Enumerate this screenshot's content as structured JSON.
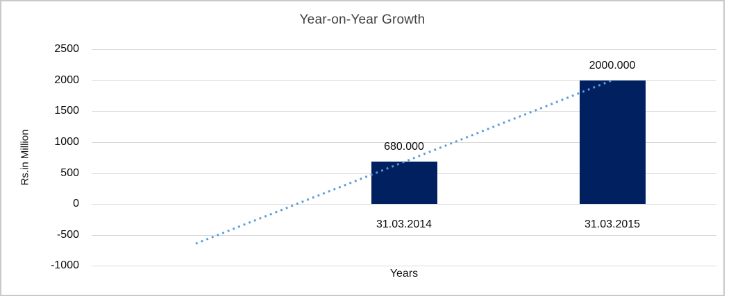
{
  "frame": {
    "background": "#ffffff",
    "border_color": "#c9c9c9"
  },
  "chart_data": {
    "type": "bar",
    "title": "Year-on-Year Growth",
    "xlabel": "Years",
    "ylabel": "Rs.in Million",
    "categories": [
      "",
      "31.03.2014",
      "31.03.2015"
    ],
    "values": [
      null,
      680,
      2000
    ],
    "data_labels": [
      "",
      "680.000",
      "2000.000"
    ],
    "ylim": [
      -1000,
      2500
    ],
    "ytick_step": 500,
    "yticks": [
      2500,
      2000,
      1500,
      1000,
      500,
      0,
      -500,
      -1000
    ],
    "grid": true,
    "legend": false,
    "bar_color": "#002060",
    "gridline_color": "#d9d9d9",
    "trendline": {
      "type": "linear",
      "style": "dotted",
      "color": "#5b9bd5",
      "points": [
        {
          "category_index": 0,
          "value": -640
        },
        {
          "category_index": 2,
          "value": 2000
        }
      ]
    }
  }
}
